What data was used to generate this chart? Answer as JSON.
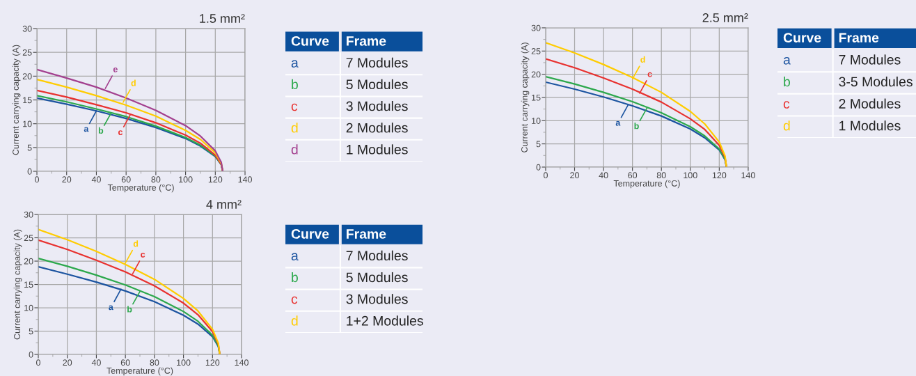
{
  "chart_data": [
    {
      "type": "line",
      "title": "1.5 mm²",
      "xlabel": "Temperature (°C)",
      "ylabel": "Current carrying capacity (A)",
      "x": [
        0,
        20,
        40,
        60,
        80,
        100,
        110,
        120,
        124,
        125
      ],
      "series": [
        {
          "color": "#1c54a0",
          "values": [
            15.4,
            14.1,
            12.7,
            11.1,
            9.2,
            6.9,
            5.3,
            3.1,
            1.4,
            0
          ]
        },
        {
          "color": "#2ca84c",
          "values": [
            15.9,
            14.6,
            13.1,
            11.5,
            9.5,
            7.1,
            5.5,
            3.2,
            1.4,
            0
          ]
        },
        {
          "color": "#e8312f",
          "values": [
            17.0,
            15.6,
            14.0,
            12.3,
            10.2,
            7.6,
            5.9,
            3.4,
            1.5,
            0
          ]
        },
        {
          "color": "#ffcc00",
          "values": [
            19.3,
            17.7,
            15.9,
            13.9,
            11.6,
            8.6,
            6.7,
            3.9,
            1.7,
            0
          ]
        },
        {
          "color": "#a3408f",
          "values": [
            21.4,
            19.6,
            17.7,
            15.4,
            12.8,
            9.6,
            7.4,
            4.3,
            1.9,
            0
          ]
        }
      ],
      "annotations": [
        {
          "text": "a",
          "x": 40,
          "y": 12.7
        },
        {
          "text": "b",
          "x": 50,
          "y": 12.3
        },
        {
          "text": "c",
          "x": 63,
          "y": 12.0
        },
        {
          "text": "d",
          "x": 58,
          "y": 14.5
        },
        {
          "text": "e",
          "x": 46,
          "y": 17.4
        }
      ],
      "xlim": [
        0,
        140
      ],
      "ylim": [
        0,
        30
      ],
      "xticks": [
        0,
        20,
        40,
        60,
        80,
        100,
        120,
        140
      ],
      "yticks": [
        0,
        5,
        10,
        15,
        20,
        25,
        30
      ],
      "grid": true,
      "marker": "none",
      "line_style": "solid"
    },
    {
      "type": "other",
      "annotations": [
        "Curve",
        "Frame",
        "a",
        "7 Modules",
        "b",
        "5 Modules",
        "c",
        "3 Modules",
        "d",
        "2 Modules",
        "d",
        "1 Modules"
      ],
      "colors": [
        "#1c54a0",
        "#2ca84c",
        "#e8312f",
        "#ffcc00",
        "#a3408f"
      ]
    },
    {
      "type": "line",
      "title": "2.5 mm²",
      "xlabel": "Temperature (°C)",
      "ylabel": "Current carrying capacity (A)",
      "x": [
        0,
        20,
        40,
        60,
        80,
        100,
        110,
        120,
        124,
        125
      ],
      "series": [
        {
          "color": "#1c54a0",
          "values": [
            18.3,
            16.8,
            15.1,
            13.2,
            11.0,
            8.2,
            6.3,
            3.7,
            1.6,
            0
          ]
        },
        {
          "color": "#2ca84c",
          "values": [
            19.5,
            17.9,
            16.1,
            14.1,
            11.7,
            8.7,
            6.7,
            3.9,
            1.7,
            0
          ]
        },
        {
          "color": "#e8312f",
          "values": [
            23.3,
            21.4,
            19.2,
            16.8,
            14.0,
            10.4,
            8.1,
            4.7,
            2.1,
            0
          ]
        },
        {
          "color": "#ffcc00",
          "values": [
            26.8,
            24.6,
            22.1,
            19.3,
            16.1,
            12.0,
            9.3,
            5.4,
            2.4,
            0
          ]
        }
      ],
      "annotations": [
        {
          "text": "a",
          "x": 57,
          "y": 13.4
        },
        {
          "text": "b",
          "x": 70,
          "y": 12.7
        },
        {
          "text": "c",
          "x": 65,
          "y": 15.9
        },
        {
          "text": "d",
          "x": 60,
          "y": 19.0
        }
      ],
      "xlim": [
        0,
        140
      ],
      "ylim": [
        0,
        30
      ],
      "xticks": [
        0,
        20,
        40,
        60,
        80,
        100,
        120,
        140
      ],
      "yticks": [
        0,
        5,
        10,
        15,
        20,
        25,
        30
      ],
      "grid": true,
      "marker": "none",
      "line_style": "solid"
    },
    {
      "type": "other",
      "annotations": [
        "Curve",
        "Frame",
        "a",
        "7 Modules",
        "b",
        "3-5 Modules",
        "c",
        "2 Modules",
        "d",
        "1 Modules"
      ],
      "colors": [
        "#1c54a0",
        "#2ca84c",
        "#e8312f",
        "#ffcc00"
      ]
    },
    {
      "type": "line",
      "title": "4 mm²",
      "xlabel": "Temperature (°C)",
      "ylabel": "Current carrying capacity (A)",
      "x": [
        0,
        20,
        40,
        60,
        80,
        100,
        110,
        120,
        124,
        125
      ],
      "series": [
        {
          "color": "#1c54a0",
          "values": [
            18.8,
            17.2,
            15.5,
            13.6,
            11.3,
            8.4,
            6.5,
            3.8,
            1.7,
            0
          ]
        },
        {
          "color": "#2ca84c",
          "values": [
            20.6,
            18.9,
            17.0,
            14.9,
            12.4,
            9.2,
            7.1,
            4.1,
            1.8,
            0
          ]
        },
        {
          "color": "#e8312f",
          "values": [
            24.5,
            22.5,
            20.2,
            17.7,
            14.7,
            11.0,
            8.5,
            4.9,
            2.2,
            0
          ]
        },
        {
          "color": "#ffcc00",
          "values": [
            26.8,
            24.6,
            22.1,
            19.3,
            16.1,
            12.0,
            9.3,
            5.4,
            2.4,
            0
          ]
        }
      ],
      "annotations": [
        {
          "text": "a",
          "x": 57,
          "y": 14.0
        },
        {
          "text": "b",
          "x": 70,
          "y": 13.5
        },
        {
          "text": "c",
          "x": 65,
          "y": 17.3
        },
        {
          "text": "d",
          "x": 60,
          "y": 19.6
        }
      ],
      "xlim": [
        0,
        140
      ],
      "ylim": [
        0,
        30
      ],
      "xticks": [
        0,
        20,
        40,
        60,
        80,
        100,
        120,
        140
      ],
      "yticks": [
        0,
        5,
        10,
        15,
        20,
        25,
        30
      ],
      "grid": true,
      "marker": "none",
      "line_style": "solid"
    },
    {
      "type": "other",
      "annotations": [
        "Curve",
        "Frame",
        "a",
        "7 Modules",
        "b",
        "5 Modules",
        "c",
        "3 Modules",
        "d",
        "1+2 Modules"
      ],
      "colors": [
        "#1c54a0",
        "#2ca84c",
        "#e8312f",
        "#ffcc00"
      ]
    }
  ]
}
